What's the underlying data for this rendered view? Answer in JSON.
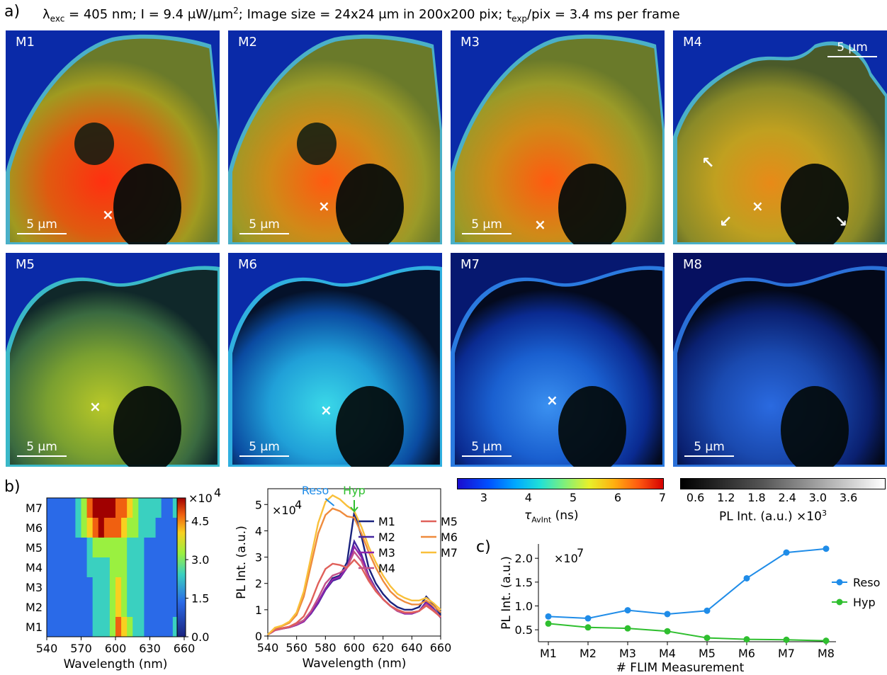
{
  "panel_labels": {
    "a": "a)",
    "b": "b)",
    "c": "c)"
  },
  "header": {
    "lambda": "λ",
    "lambda_sub": "exc",
    "lambda_val": " = 405 nm;  I = 9.4 μW/μm",
    "sup2": "2",
    "mid": "; Image size = 24x24 μm in 200x200 pix;  t",
    "t_sub": "exp",
    "end": "/pix = 3.4 ms per frame"
  },
  "tiles": [
    {
      "label": "M1",
      "scale": "5 μm",
      "marker": true,
      "kind": "warm3"
    },
    {
      "label": "M2",
      "scale": "5 μm",
      "marker": true,
      "kind": "warm2"
    },
    {
      "label": "M3",
      "scale": "5 μm",
      "marker": true,
      "kind": "warm2"
    },
    {
      "label": "M4",
      "scale": "5 μm",
      "marker": true,
      "kind": "warm1"
    },
    {
      "label": "M5",
      "scale": "5 μm",
      "marker": true,
      "kind": "mid"
    },
    {
      "label": "M6",
      "scale": "5 μm",
      "marker": true,
      "kind": "cool"
    },
    {
      "label": "M7",
      "scale": "5 μm",
      "marker": true,
      "kind": "cooler"
    },
    {
      "label": "M8",
      "scale": "5 μm",
      "marker": false,
      "kind": "coolest"
    }
  ],
  "colors": {
    "reso": "#1f8ce8",
    "hyp": "#2fbf2f",
    "M1": "#1a237e",
    "M2": "#4527a0",
    "M3": "#8e24aa",
    "M4": "#c2528a",
    "M5": "#e0605a",
    "M6": "#ef8b3d",
    "M7": "#f9c03a"
  },
  "colorbar_lifetime": {
    "ticks": [
      "3",
      "4",
      "5",
      "6",
      "7"
    ],
    "label": "τ",
    "label_sub": "AvInt",
    "label_end": " (ns)"
  },
  "colorbar_intensity": {
    "ticks": [
      "0.6",
      "1.2",
      "1.8",
      "2.4",
      "3.0",
      "3.6"
    ],
    "label": "PL Int. (a.u.) ×10",
    "label_sup": "3"
  },
  "heatmap": {
    "rows": [
      "M7",
      "M6",
      "M5",
      "M4",
      "M3",
      "M2",
      "M1"
    ],
    "xticks": [
      "540",
      "570",
      "600",
      "630",
      "660"
    ],
    "xlabel": "Wavelength (nm)",
    "cbar_ticks": [
      "0.0",
      "1.5",
      "3.0",
      "4.5"
    ],
    "cbar_exp": "×10",
    "cbar_exp_sup": "4"
  },
  "chart_data": [
    {
      "type": "line",
      "xlabel": "Wavelength (nm)",
      "ylabel": "PL Int. (a.u.)",
      "y_multiplier": "×10^4",
      "xlim": [
        540,
        660
      ],
      "ylim": [
        0,
        5.6
      ],
      "xticks": [
        "540",
        "560",
        "580",
        "600",
        "620",
        "640",
        "660"
      ],
      "yticks": [
        "0",
        "1",
        "2",
        "3",
        "4",
        "5"
      ],
      "annotations": [
        "Reso",
        "Hyp"
      ],
      "x": [
        540,
        545,
        550,
        555,
        560,
        565,
        570,
        575,
        580,
        585,
        590,
        595,
        600,
        605,
        610,
        615,
        620,
        625,
        630,
        635,
        640,
        645,
        650,
        655,
        660
      ],
      "series": [
        {
          "name": "M1",
          "values": [
            0.05,
            0.25,
            0.3,
            0.35,
            0.45,
            0.6,
            0.9,
            1.3,
            1.8,
            2.2,
            2.3,
            2.8,
            4.7,
            3.8,
            2.6,
            2.0,
            1.6,
            1.3,
            1.1,
            1.0,
            1.0,
            1.1,
            1.5,
            1.2,
            0.8
          ]
        },
        {
          "name": "M2",
          "values": [
            0.05,
            0.22,
            0.28,
            0.33,
            0.42,
            0.55,
            0.85,
            1.25,
            1.75,
            2.1,
            2.2,
            2.6,
            3.6,
            3.1,
            2.3,
            1.8,
            1.4,
            1.15,
            0.95,
            0.85,
            0.85,
            0.95,
            1.3,
            1.05,
            0.7
          ]
        },
        {
          "name": "M3",
          "values": [
            0.05,
            0.22,
            0.28,
            0.33,
            0.42,
            0.55,
            0.88,
            1.3,
            1.8,
            2.15,
            2.25,
            2.6,
            3.4,
            3.0,
            2.25,
            1.75,
            1.4,
            1.15,
            0.95,
            0.85,
            0.85,
            0.95,
            1.25,
            1.0,
            0.7
          ]
        },
        {
          "name": "M4",
          "values": [
            0.05,
            0.22,
            0.28,
            0.34,
            0.44,
            0.6,
            0.95,
            1.45,
            2.0,
            2.3,
            2.4,
            2.6,
            3.2,
            2.85,
            2.2,
            1.75,
            1.4,
            1.15,
            0.95,
            0.88,
            0.88,
            0.95,
            1.2,
            1.0,
            0.72
          ]
        },
        {
          "name": "M5",
          "values": [
            0.05,
            0.24,
            0.3,
            0.36,
            0.5,
            0.75,
            1.3,
            2.0,
            2.55,
            2.75,
            2.7,
            2.6,
            2.9,
            2.6,
            2.1,
            1.7,
            1.4,
            1.15,
            1.0,
            0.9,
            0.9,
            0.95,
            1.15,
            0.95,
            0.72
          ]
        },
        {
          "name": "M6",
          "values": [
            0.05,
            0.3,
            0.38,
            0.5,
            0.8,
            1.5,
            2.7,
            3.9,
            4.6,
            4.85,
            4.75,
            4.55,
            4.5,
            3.9,
            3.2,
            2.6,
            2.1,
            1.7,
            1.45,
            1.3,
            1.2,
            1.2,
            1.35,
            1.15,
            0.9
          ]
        },
        {
          "name": "M7",
          "values": [
            0.05,
            0.32,
            0.4,
            0.55,
            0.9,
            1.7,
            3.0,
            4.3,
            5.1,
            5.35,
            5.2,
            4.95,
            4.75,
            4.15,
            3.4,
            2.8,
            2.3,
            1.9,
            1.6,
            1.45,
            1.35,
            1.35,
            1.45,
            1.25,
            1.0
          ]
        }
      ],
      "legend": [
        "M1",
        "M2",
        "M3",
        "M4",
        "M5",
        "M6",
        "M7"
      ]
    },
    {
      "type": "line",
      "xlabel": "# FLIM Measurement",
      "ylabel": "PL Int. (a.u.)",
      "y_multiplier": "×10^7",
      "categories": [
        "M1",
        "M2",
        "M3",
        "M4",
        "M5",
        "M6",
        "M7",
        "M8"
      ],
      "ylim": [
        0.25,
        2.3
      ],
      "yticks": [
        "0.5",
        "1.0",
        "1.5",
        "2.0"
      ],
      "series": [
        {
          "name": "Reso",
          "values": [
            0.78,
            0.74,
            0.91,
            0.83,
            0.9,
            1.58,
            2.12,
            2.2
          ]
        },
        {
          "name": "Hyp",
          "values": [
            0.63,
            0.55,
            0.53,
            0.47,
            0.33,
            0.3,
            0.29,
            0.27
          ]
        }
      ],
      "legend_position": "right"
    }
  ]
}
